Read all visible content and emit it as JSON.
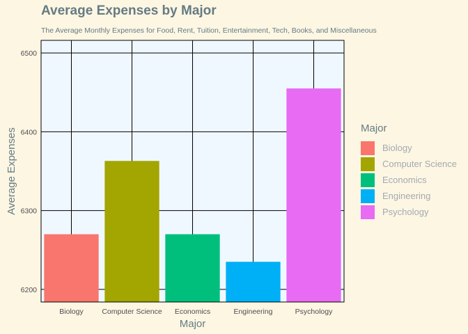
{
  "chart_data": {
    "type": "bar",
    "title": "Average Expenses by Major",
    "subtitle": "The Average Monthly Expenses for Food, Rent, Tuition, Entertainment, Tech, Books, and Miscellaneous",
    "xlabel": "Major",
    "ylabel": "Average Expenses",
    "categories": [
      "Biology",
      "Computer Science",
      "Economics",
      "Engineering",
      "Psychology"
    ],
    "values": [
      6270,
      6363,
      6270,
      6235,
      6455
    ],
    "colors": [
      "#f8766d",
      "#a3a500",
      "#00bf7d",
      "#00b0f6",
      "#e76bf3"
    ],
    "ylim": [
      6184,
      6516
    ],
    "yticks": [
      6200,
      6300,
      6400,
      6500
    ],
    "grid": true,
    "legend": {
      "title": "Major",
      "position": "right",
      "entries": [
        "Biology",
        "Computer Science",
        "Economics",
        "Engineering",
        "Psychology"
      ]
    }
  }
}
